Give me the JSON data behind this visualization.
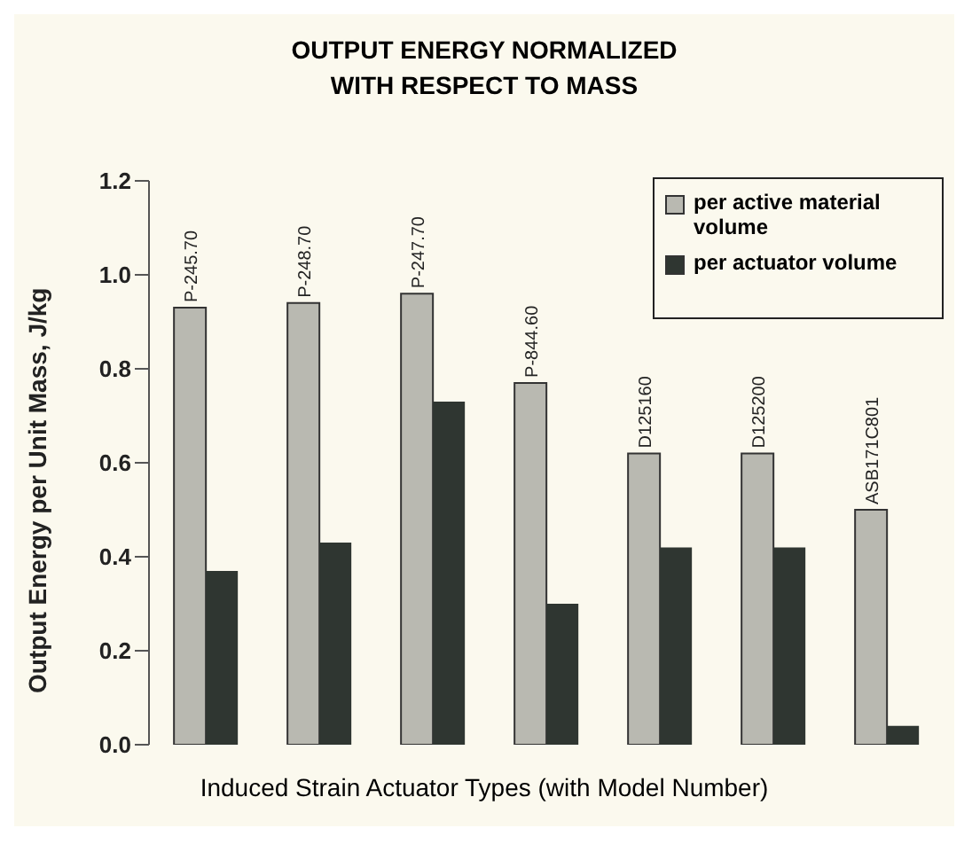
{
  "chart_data": {
    "type": "bar",
    "title": "OUTPUT ENERGY NORMALIZED\nWITH RESPECT TO MASS",
    "xlabel": "Induced Strain Actuator Types (with Model Number)",
    "ylabel": "Output Energy per Unit Mass, J/kg",
    "categories": [
      "P-245.70",
      "P-248.70",
      "P-247.70",
      "P-844.60",
      "D125160",
      "D125200",
      "ASB171C801"
    ],
    "series": [
      {
        "name": "per active material volume",
        "color": "#b9b9b1",
        "values": [
          0.93,
          0.94,
          0.96,
          0.77,
          0.62,
          0.62,
          0.5
        ]
      },
      {
        "name": "per actuator volume",
        "color": "#2f3631",
        "values": [
          0.37,
          0.43,
          0.73,
          0.3,
          0.42,
          0.42,
          0.04
        ]
      }
    ],
    "ylim": [
      0,
      1.2
    ],
    "yticks": [
      {
        "value": 0,
        "label": "0.0"
      },
      0.2,
      0.4,
      0.6,
      0.8,
      {
        "value": 1,
        "label": "1.0"
      },
      1.2
    ],
    "grid": false,
    "legend": "top right"
  }
}
